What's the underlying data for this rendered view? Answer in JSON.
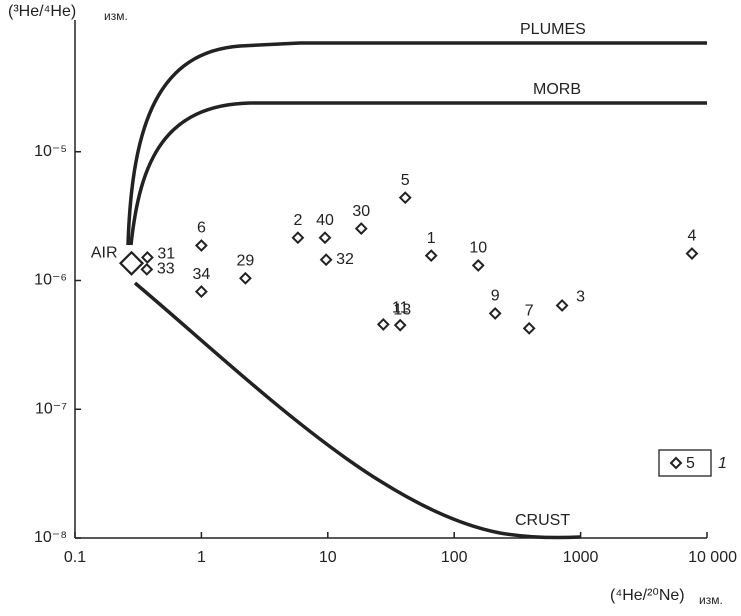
{
  "chart_data": {
    "type": "scatter",
    "log_x": true,
    "log_y": true,
    "xlim": [
      0.1,
      10000
    ],
    "ylim": [
      1e-08,
      0.0001
    ],
    "xticks": [
      0.1,
      1,
      10,
      100,
      1000,
      {
        "value": 10000,
        "label": "10 000"
      }
    ],
    "yticks": [
      {
        "value": 1e-08,
        "label": "10⁻⁸"
      },
      {
        "value": 1e-07,
        "label": "10⁻⁷"
      },
      {
        "value": 1e-06,
        "label": "10⁻⁶"
      },
      {
        "value": 1e-05,
        "label": "10⁻⁵"
      }
    ],
    "ylabel": {
      "main": "(³He/⁴He)",
      "sub": "изм."
    },
    "xlabel": {
      "main": "(⁴He/²⁰Ne)",
      "sub": "изм."
    },
    "color": "#222222",
    "series": [
      {
        "labels": [
          "31",
          "33",
          "6",
          "34",
          "29",
          "2",
          "40",
          "32",
          "30",
          "5",
          "1",
          "13",
          "11",
          "10",
          "9",
          "7",
          "3",
          "4"
        ],
        "x": [
          0.374,
          0.37,
          1,
          1,
          2.23,
          5.8,
          9.5,
          9.7,
          18.4,
          41,
          65.8,
          27.5,
          37.4,
          155,
          211,
          392,
          714,
          7600
        ],
        "values": [
          1.51e-06,
          1.22e-06,
          1.87e-06,
          8.2e-07,
          1.04e-06,
          2.15e-06,
          2.15e-06,
          1.45e-06,
          2.53e-06,
          4.4e-06,
          1.56e-06,
          4.56e-07,
          4.5e-07,
          1.31e-06,
          5.55e-07,
          4.25e-07,
          6.4e-07,
          1.62e-06
        ]
      }
    ],
    "air": {
      "label": "AIR",
      "x": 0.28,
      "y": 1.36e-06
    },
    "curve_labels": {
      "plumes": "PLUMES",
      "morb": "MORB",
      "crust": "CRUST"
    },
    "legend": {
      "label": "5",
      "key": "1"
    }
  }
}
